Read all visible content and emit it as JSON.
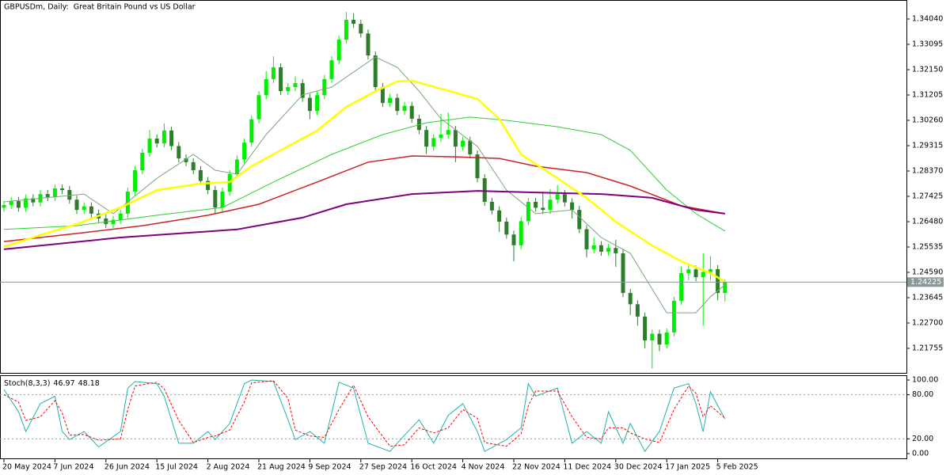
{
  "chart_data": [
    {
      "type": "candlestick",
      "title": "GBPUSDm, Daily:  Great Britain Pound vs US Dollar",
      "categories": [
        "20 May 2024",
        null,
        null,
        null,
        null,
        null,
        null,
        "7 Jun 2024",
        null,
        null,
        null,
        null,
        null,
        null,
        "26 Jun 2024",
        null,
        null,
        null,
        null,
        null,
        null,
        "15 Jul 2024",
        null,
        null,
        null,
        null,
        null,
        null,
        "2 Aug 2024",
        null,
        null,
        null,
        null,
        null,
        null,
        "21 Aug 2024",
        null,
        null,
        null,
        null,
        null,
        null,
        "9 Sep 2024",
        null,
        null,
        null,
        null,
        null,
        null,
        "27 Sep 2024",
        null,
        null,
        null,
        null,
        null,
        null,
        "16 Oct 2024",
        null,
        null,
        null,
        null,
        null,
        null,
        "4 Nov 2024",
        null,
        null,
        null,
        null,
        null,
        null,
        "22 Nov 2024",
        null,
        null,
        null,
        null,
        null,
        null,
        "11 Dec 2024",
        null,
        null,
        null,
        null,
        null,
        null,
        "30 Dec 2024",
        null,
        null,
        null,
        null,
        null,
        null,
        "17 Jan 2025",
        null,
        null,
        null,
        null,
        null,
        null,
        "5 Feb 2025",
        null
      ],
      "open": [
        1.27,
        1.271,
        1.2725,
        1.27,
        1.2735,
        1.272,
        1.2751,
        1.274,
        1.2772,
        1.2766,
        1.273,
        1.2692,
        1.2705,
        1.2678,
        1.266,
        1.2639,
        1.2655,
        1.2678,
        1.276,
        1.284,
        1.2905,
        1.2958,
        1.294,
        1.2988,
        1.293,
        1.2884,
        1.287,
        1.284,
        1.28,
        1.2766,
        1.2701,
        1.276,
        1.2825,
        1.288,
        1.2943,
        1.303,
        1.312,
        1.318,
        1.3224,
        1.3135,
        1.315,
        1.3165,
        1.311,
        1.3061,
        1.312,
        1.318,
        1.325,
        1.3327,
        1.3401,
        1.3386,
        1.335,
        1.3268,
        1.315,
        1.3091,
        1.311,
        1.3061,
        1.308,
        1.3032,
        1.299,
        1.2928,
        1.296,
        1.2973,
        1.299,
        1.2928,
        1.295,
        1.2899,
        1.281,
        1.2722,
        1.269,
        1.2648,
        1.26,
        1.256,
        1.265,
        1.2722,
        1.27,
        1.2692,
        1.273,
        1.2751,
        1.272,
        1.2692,
        1.262,
        1.2545,
        1.256,
        1.2536,
        1.255,
        1.253,
        1.2382,
        1.234,
        1.2294,
        1.2205,
        1.223,
        1.219,
        1.2235,
        1.2353,
        1.2456,
        1.247,
        1.2441,
        1.246,
        1.2471,
        1.2382
      ],
      "high": [
        1.2725,
        1.274,
        1.274,
        1.275,
        1.275,
        1.2766,
        1.2766,
        1.2787,
        1.2787,
        1.2781,
        1.2745,
        1.272,
        1.272,
        1.2693,
        1.2675,
        1.267,
        1.2693,
        1.2775,
        1.2855,
        1.292,
        1.299,
        1.2973,
        1.3015,
        1.3003,
        1.2945,
        1.2899,
        1.2885,
        1.2855,
        1.2815,
        1.2781,
        1.2775,
        1.284,
        1.2895,
        1.2958,
        1.3045,
        1.3135,
        1.321,
        1.3265,
        1.3239,
        1.3165,
        1.319,
        1.318,
        1.3125,
        1.3135,
        1.3195,
        1.3265,
        1.3342,
        1.343,
        1.3425,
        1.3401,
        1.3365,
        1.3283,
        1.3165,
        1.3125,
        1.3125,
        1.3095,
        1.3095,
        1.3047,
        1.3005,
        1.2975,
        1.305,
        1.3055,
        1.3005,
        1.2965,
        1.2965,
        1.2914,
        1.2825,
        1.2737,
        1.2705,
        1.2663,
        1.2615,
        1.2665,
        1.2737,
        1.2737,
        1.276,
        1.277,
        1.2785,
        1.2766,
        1.2735,
        1.2707,
        1.2635,
        1.259,
        1.2575,
        1.2565,
        1.258,
        1.2545,
        1.2397,
        1.2355,
        1.2309,
        1.2245,
        1.2245,
        1.225,
        1.2368,
        1.248,
        1.2485,
        1.2485,
        1.253,
        1.252,
        1.2486,
        1.2432
      ],
      "low": [
        1.2685,
        1.2695,
        1.2685,
        1.2685,
        1.2705,
        1.2705,
        1.2725,
        1.2725,
        1.2751,
        1.2715,
        1.2677,
        1.2677,
        1.2663,
        1.2645,
        1.2624,
        1.2624,
        1.264,
        1.2663,
        1.2745,
        1.2825,
        1.289,
        1.2925,
        1.2925,
        1.2915,
        1.2869,
        1.2855,
        1.2825,
        1.2785,
        1.2751,
        1.268,
        1.2686,
        1.2745,
        1.281,
        1.2865,
        1.2928,
        1.3015,
        1.3105,
        1.3165,
        1.312,
        1.312,
        1.3135,
        1.3095,
        1.303,
        1.3046,
        1.3105,
        1.3165,
        1.3235,
        1.3312,
        1.3371,
        1.3335,
        1.3253,
        1.3135,
        1.3076,
        1.3076,
        1.3046,
        1.3046,
        1.3017,
        1.2975,
        1.29,
        1.2913,
        1.2945,
        1.2958,
        1.287,
        1.2913,
        1.2884,
        1.2795,
        1.2707,
        1.2675,
        1.261,
        1.2585,
        1.25,
        1.2545,
        1.2635,
        1.2685,
        1.2677,
        1.2677,
        1.2715,
        1.2705,
        1.266,
        1.2605,
        1.2515,
        1.253,
        1.2521,
        1.2521,
        1.248,
        1.2367,
        1.23,
        1.226,
        1.2175,
        1.21,
        1.2165,
        1.2175,
        1.222,
        1.2338,
        1.243,
        1.2426,
        1.226,
        1.243,
        1.2355,
        1.235
      ],
      "close": [
        1.271,
        1.2725,
        1.27,
        1.2735,
        1.272,
        1.2751,
        1.274,
        1.2772,
        1.2766,
        1.273,
        1.2692,
        1.2705,
        1.2678,
        1.266,
        1.2639,
        1.2655,
        1.2678,
        1.276,
        1.284,
        1.2905,
        1.2958,
        1.294,
        1.2988,
        1.293,
        1.2884,
        1.287,
        1.284,
        1.28,
        1.2766,
        1.2701,
        1.276,
        1.2825,
        1.288,
        1.2943,
        1.303,
        1.312,
        1.318,
        1.3224,
        1.3135,
        1.315,
        1.3165,
        1.311,
        1.3061,
        1.312,
        1.318,
        1.325,
        1.3327,
        1.3401,
        1.3386,
        1.335,
        1.3268,
        1.315,
        1.3091,
        1.311,
        1.3061,
        1.308,
        1.3032,
        1.299,
        1.2928,
        1.296,
        1.2973,
        1.299,
        1.2928,
        1.295,
        1.2899,
        1.281,
        1.2722,
        1.269,
        1.2648,
        1.26,
        1.256,
        1.265,
        1.2722,
        1.27,
        1.2692,
        1.273,
        1.2751,
        1.272,
        1.2692,
        1.262,
        1.2545,
        1.256,
        1.2536,
        1.255,
        1.253,
        1.2382,
        1.234,
        1.2294,
        1.2205,
        1.223,
        1.219,
        1.2235,
        1.2353,
        1.2456,
        1.247,
        1.2441,
        1.246,
        1.2471,
        1.2382,
        1.2422
      ],
      "up_color": "#00ee00",
      "down_color": "#2d7d2d",
      "series": [
        {
          "color": "#7aa67a",
          "width": 1,
          "x": [
            0,
            11,
            15,
            21,
            26,
            29,
            32,
            36,
            41,
            45,
            51,
            54,
            57,
            60,
            65,
            69,
            73,
            78,
            82,
            86,
            91,
            95,
            97,
            99
          ],
          "values": [
            1.2722,
            1.2751,
            1.2678,
            1.281,
            1.2899,
            1.284,
            1.2825,
            1.2973,
            1.3121,
            1.315,
            1.3262,
            1.3224,
            1.3135,
            1.3032,
            1.2929,
            1.2766,
            1.2678,
            1.2692,
            1.2589,
            1.253,
            1.2308,
            1.2308,
            1.2368,
            1.2412
          ]
        },
        {
          "color": "#32cd32",
          "width": 1,
          "x": [
            0,
            10,
            21,
            30,
            37,
            45,
            52,
            58,
            64,
            69,
            76,
            82,
            86,
            91,
            95,
            99
          ],
          "values": [
            1.2619,
            1.2633,
            1.2672,
            1.2701,
            1.2796,
            1.2899,
            1.2973,
            1.3017,
            1.3038,
            1.3026,
            1.3002,
            1.2973,
            1.2914,
            1.2766,
            1.2678,
            1.2613
          ]
        },
        {
          "color": "#cc2222",
          "width": 1.5,
          "x": [
            0,
            10,
            19,
            28,
            35,
            43,
            50,
            56,
            62,
            68,
            73,
            80,
            86,
            93,
            99
          ],
          "values": [
            1.2574,
            1.2604,
            1.2633,
            1.2672,
            1.2713,
            1.2796,
            1.287,
            1.2893,
            1.289,
            1.2884,
            1.2855,
            1.2831,
            1.2781,
            1.2707,
            1.2678
          ]
        },
        {
          "color": "#800080",
          "width": 2,
          "x": [
            0,
            16,
            32,
            41,
            47,
            56,
            65,
            73,
            82,
            89,
            95,
            99
          ],
          "values": [
            1.2545,
            1.2589,
            1.2619,
            1.2663,
            1.2713,
            1.2751,
            1.2763,
            1.2757,
            1.2751,
            1.2737,
            1.2692,
            1.2678
          ]
        },
        {
          "color": "#ffff00",
          "width": 2.5,
          "x": [
            0,
            5,
            10,
            16,
            21,
            27,
            31,
            34,
            39,
            43,
            47,
            51,
            54,
            56,
            60,
            65,
            68,
            71,
            76,
            80,
            84,
            89,
            93,
            97,
            99
          ],
          "values": [
            1.2554,
            1.2598,
            1.2639,
            1.2701,
            1.2766,
            1.279,
            1.2796,
            1.2855,
            1.2929,
            1.2988,
            1.3076,
            1.3135,
            1.3171,
            1.3174,
            1.3144,
            1.3106,
            1.3032,
            1.2899,
            1.281,
            1.2737,
            1.2648,
            1.2559,
            1.25,
            1.2456,
            1.2424
          ]
        }
      ],
      "current_price": 1.24225,
      "ylim": [
        1.2084,
        1.3469
      ],
      "yticks": [
        {
          "value": 1.3404,
          "label": "1.34040"
        },
        1.33095,
        {
          "value": 1.3215,
          "label": "1.32150"
        },
        1.31205,
        {
          "value": 1.3026,
          "label": "1.30260"
        },
        1.29315,
        {
          "value": 1.2837,
          "label": "1.28370"
        },
        1.27425,
        {
          "value": 1.2648,
          "label": "1.26480"
        },
        1.25535,
        {
          "value": 1.2459,
          "label": "1.24590"
        },
        1.23645,
        {
          "value": 1.227,
          "label": "1.22700"
        },
        1.21755
      ]
    },
    {
      "type": "line",
      "title": "Stoch(8,3,3)",
      "x": [
        0,
        2,
        3,
        5,
        7,
        8,
        9,
        11,
        13,
        16,
        17,
        18,
        21,
        22,
        24,
        26,
        28,
        29,
        31,
        33,
        34,
        37,
        39,
        40,
        42,
        44,
        46,
        48,
        50,
        53,
        55,
        57,
        59,
        61,
        63,
        65,
        66,
        69,
        71,
        72,
        73,
        76,
        78,
        80,
        82,
        83,
        85,
        86,
        88,
        90,
        92,
        94,
        95,
        96,
        97,
        99
      ],
      "series": [
        {
          "color": "#20b2aa",
          "dashed": false,
          "values": [
            87,
            57,
            30,
            68,
            78,
            30,
            19,
            30,
            9,
            30,
            89,
            98,
            95,
            78,
            14,
            14,
            30,
            19,
            41,
            95,
            100,
            98,
            46,
            19,
            30,
            14,
            97,
            89,
            14,
            3,
            25,
            46,
            14,
            52,
            68,
            30,
            3,
            19,
            35,
            95,
            78,
            89,
            14,
            30,
            14,
            57,
            14,
            41,
            3,
            30,
            89,
            95,
            68,
            30,
            84,
            46.97
          ]
        },
        {
          "color": "#ff0000",
          "dashed": true,
          "values": [
            80,
            70,
            45,
            50,
            72,
            55,
            25,
            26,
            18,
            20,
            60,
            92,
            97,
            88,
            45,
            15,
            22,
            24,
            32,
            70,
            96,
            99,
            75,
            32,
            24,
            22,
            60,
            93,
            50,
            10,
            12,
            35,
            28,
            35,
            60,
            48,
            15,
            10,
            27,
            65,
            85,
            85,
            50,
            22,
            20,
            35,
            35,
            28,
            20,
            15,
            60,
            92,
            82,
            50,
            65,
            48.18
          ]
        }
      ],
      "levels": [
        80,
        20
      ],
      "ylim": [
        -6.5,
        105.4
      ],
      "yticks": [
        {
          "value": 100,
          "label": "100.00"
        },
        {
          "value": 80,
          "label": "80.00"
        },
        {
          "value": 20,
          "label": "20.00"
        },
        {
          "value": 0,
          "label": "0.00"
        }
      ]
    }
  ]
}
